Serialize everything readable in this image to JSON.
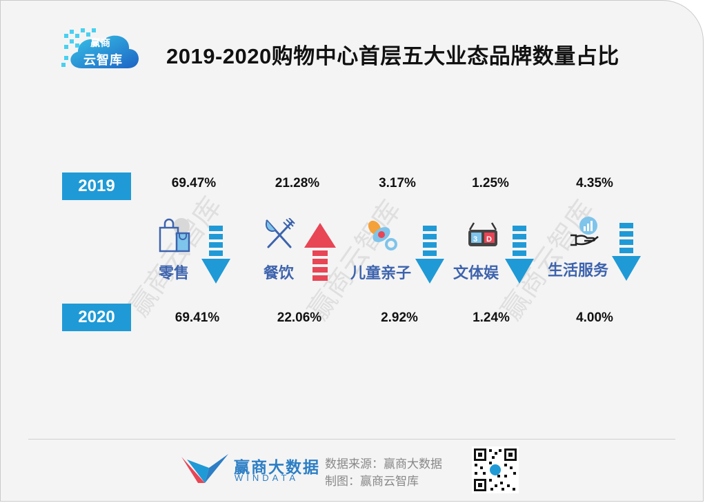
{
  "logo": {
    "line1": "赢商",
    "line2": "云智库"
  },
  "title": "2019-2020购物中心首层五大业态品牌数量占比",
  "colors": {
    "accent": "#1f9ad6",
    "category": "#3d63ad",
    "down_arrow": "#1f9ad6",
    "up_arrow": "#e84555"
  },
  "watermark": "赢商云智库",
  "chart_data": {
    "type": "table",
    "title": "2019-2020购物中心首层五大业态品牌数量占比",
    "rows": [
      "2019",
      "2020"
    ],
    "categories": [
      "零售",
      "餐饮",
      "儿童亲子",
      "文体娱",
      "生活服务"
    ],
    "series": [
      {
        "name": "2019",
        "values": [
          69.47,
          21.28,
          3.17,
          1.25,
          4.35
        ],
        "labels": [
          "69.47%",
          "21.28%",
          "3.17%",
          "1.25%",
          "4.35%"
        ]
      },
      {
        "name": "2020",
        "values": [
          69.41,
          22.06,
          2.92,
          1.24,
          4.0
        ],
        "labels": [
          "69.41%",
          "22.06%",
          "2.92%",
          "1.24%",
          "4.00%"
        ]
      }
    ],
    "trend": [
      "down",
      "up",
      "down",
      "down",
      "down"
    ],
    "icons": [
      "shopping-bag-icon",
      "knife-fork-icon",
      "pacifier-icon",
      "3d-glasses-icon",
      "service-hand-icon"
    ]
  },
  "footer": {
    "brand_cn": "赢商大数据",
    "brand_en": "WINDATA",
    "source_line": "数据来源：赢商大数据",
    "maker_line": "制图：赢商云智库"
  }
}
